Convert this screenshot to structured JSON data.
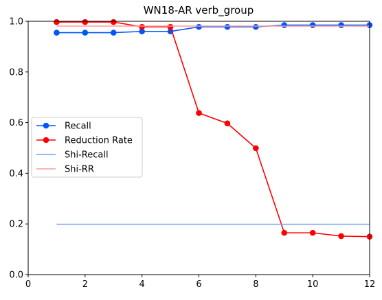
{
  "chart_data": {
    "type": "line",
    "title": "WN18-AR verb_group",
    "xlabel": "",
    "ylabel": "",
    "xlim": [
      0,
      12
    ],
    "ylim": [
      0,
      1.0
    ],
    "xticks": [
      "0",
      "2",
      "4",
      "6",
      "8",
      "10",
      "12"
    ],
    "yticks": [
      "0.0",
      "0.2",
      "0.4",
      "0.6",
      "0.8",
      "1.0"
    ],
    "grid": false,
    "legend_position": "center-left",
    "series": [
      {
        "name": "Recall",
        "color": "#0055ff",
        "marker": "circle",
        "x": [
          1,
          2,
          3,
          4,
          5,
          6,
          7,
          8,
          9,
          10,
          11,
          12
        ],
        "y": [
          0.955,
          0.955,
          0.955,
          0.96,
          0.96,
          0.978,
          0.978,
          0.978,
          0.985,
          0.985,
          0.985,
          0.985
        ]
      },
      {
        "name": "Reduction Rate",
        "color": "#ff0000",
        "marker": "circle",
        "x": [
          1,
          2,
          3,
          4,
          5,
          6,
          7,
          8,
          9,
          10,
          11,
          12
        ],
        "y": [
          0.997,
          0.997,
          0.997,
          0.978,
          0.978,
          0.638,
          0.597,
          0.499,
          0.165,
          0.165,
          0.152,
          0.15
        ]
      },
      {
        "name": "Shi-Recall",
        "color": "#6fa0f0",
        "marker": "none",
        "x": [
          1,
          12
        ],
        "y": [
          0.199,
          0.199
        ]
      },
      {
        "name": "Shi-RR",
        "color": "#ff9a9a",
        "marker": "none",
        "x": [
          1,
          12
        ],
        "y": [
          0.981,
          0.981
        ]
      }
    ]
  }
}
